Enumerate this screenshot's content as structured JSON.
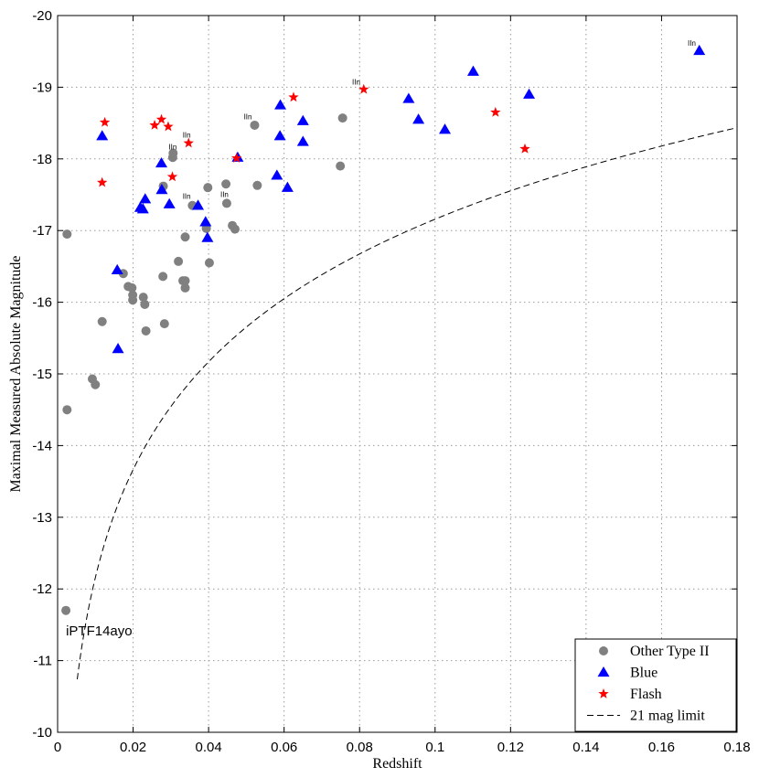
{
  "chart_data": {
    "type": "scatter",
    "xlabel": "Redshift",
    "ylabel": "Maximal Measured Absolute Magnitude",
    "xlim": [
      0,
      0.18
    ],
    "ylim": [
      -10,
      -20
    ],
    "y_reversed": true,
    "grid": true,
    "legend_position": "bottom-right",
    "x_ticks": [
      "0",
      "0.02",
      "0.04",
      "0.06",
      "0.08",
      "0.1",
      "0.12",
      "0.14",
      "0.16",
      "0.18"
    ],
    "y_ticks": [
      "-10",
      "-11",
      "-12",
      "-13",
      "-14",
      "-15",
      "-16",
      "-17",
      "-18",
      "-19",
      "-20"
    ],
    "colors": {
      "other": "#808080",
      "blue": "#0000ff",
      "flash": "#ff0000",
      "line": "#000000"
    },
    "series": [
      {
        "name": "Other Type II",
        "marker": "circle",
        "points": [
          [
            0.0025,
            -16.95
          ],
          [
            0.0025,
            -14.5
          ],
          [
            0.0022,
            -11.7
          ],
          [
            0.0092,
            -14.93
          ],
          [
            0.01,
            -14.85
          ],
          [
            0.0118,
            -15.73
          ],
          [
            0.0174,
            -16.4
          ],
          [
            0.0187,
            -16.22
          ],
          [
            0.0197,
            -16.2
          ],
          [
            0.0199,
            -16.1
          ],
          [
            0.0199,
            -16.03
          ],
          [
            0.0227,
            -16.07
          ],
          [
            0.0231,
            -15.97
          ],
          [
            0.0234,
            -15.6
          ],
          [
            0.0279,
            -16.36
          ],
          [
            0.0283,
            -15.7
          ],
          [
            0.028,
            -17.62
          ],
          [
            0.0306,
            -18.08
          ],
          [
            0.0305,
            -18.02
          ],
          [
            0.032,
            -16.57
          ],
          [
            0.0332,
            -16.3
          ],
          [
            0.0338,
            -16.3
          ],
          [
            0.0338,
            -16.2
          ],
          [
            0.0338,
            -16.91
          ],
          [
            0.0357,
            -17.35
          ],
          [
            0.0394,
            -17.03
          ],
          [
            0.0398,
            -17.6
          ],
          [
            0.0402,
            -16.55
          ],
          [
            0.0446,
            -17.65
          ],
          [
            0.0448,
            -17.38
          ],
          [
            0.0463,
            -17.07
          ],
          [
            0.047,
            -17.02
          ],
          [
            0.0522,
            -18.47
          ],
          [
            0.0529,
            -17.63
          ],
          [
            0.0749,
            -17.9
          ],
          [
            0.0755,
            -18.57
          ]
        ]
      },
      {
        "name": "Blue",
        "marker": "triangle",
        "points": [
          [
            0.0118,
            -18.32
          ],
          [
            0.0158,
            -16.45
          ],
          [
            0.016,
            -15.35
          ],
          [
            0.0219,
            -17.32
          ],
          [
            0.0226,
            -17.3
          ],
          [
            0.0232,
            -17.44
          ],
          [
            0.0275,
            -17.94
          ],
          [
            0.0276,
            -17.57
          ],
          [
            0.0296,
            -17.37
          ],
          [
            0.0372,
            -17.35
          ],
          [
            0.0392,
            -17.12
          ],
          [
            0.0397,
            -16.9
          ],
          [
            0.0477,
            -18.02
          ],
          [
            0.0581,
            -17.77
          ],
          [
            0.059,
            -18.75
          ],
          [
            0.0589,
            -18.32
          ],
          [
            0.0609,
            -17.6
          ],
          [
            0.065,
            -18.53
          ],
          [
            0.065,
            -18.24
          ],
          [
            0.093,
            -18.84
          ],
          [
            0.0956,
            -18.55
          ],
          [
            0.1026,
            -18.41
          ],
          [
            0.1101,
            -19.22
          ],
          [
            0.1249,
            -18.9
          ],
          [
            0.17,
            -19.51
          ]
        ]
      },
      {
        "name": "Flash",
        "marker": "star",
        "points": [
          [
            0.0125,
            -18.51
          ],
          [
            0.0118,
            -17.67
          ],
          [
            0.0257,
            -18.47
          ],
          [
            0.0275,
            -18.55
          ],
          [
            0.0293,
            -18.45
          ],
          [
            0.0304,
            -17.75
          ],
          [
            0.0347,
            -18.22
          ],
          [
            0.0474,
            -18.01
          ],
          [
            0.0625,
            -18.86
          ],
          [
            0.0811,
            -18.97
          ],
          [
            0.116,
            -18.65
          ],
          [
            0.1238,
            -18.14
          ]
        ]
      },
      {
        "name": "21 mag limit",
        "marker": "dashed-line",
        "apparent_limit": 21,
        "x_start": 0.0052,
        "x_end": 0.18
      }
    ],
    "annotations": [
      {
        "text": "IIn",
        "x": 0.0305,
        "y": -18.13,
        "size": "small"
      },
      {
        "text": "IIn",
        "x": 0.0342,
        "y": -18.3,
        "size": "small"
      },
      {
        "text": "IIn",
        "x": 0.0342,
        "y": -17.44,
        "size": "small"
      },
      {
        "text": "IIn",
        "x": 0.0442,
        "y": -17.47,
        "size": "small"
      },
      {
        "text": "IIn",
        "x": 0.0504,
        "y": -18.55,
        "size": "small"
      },
      {
        "text": "IIn",
        "x": 0.0791,
        "y": -19.04,
        "size": "small"
      },
      {
        "text": "IIn",
        "x": 0.168,
        "y": -19.58,
        "size": "small"
      },
      {
        "text": "iPTF14ayo",
        "x": 0.0022,
        "y": -11.35,
        "size": "large"
      }
    ]
  }
}
